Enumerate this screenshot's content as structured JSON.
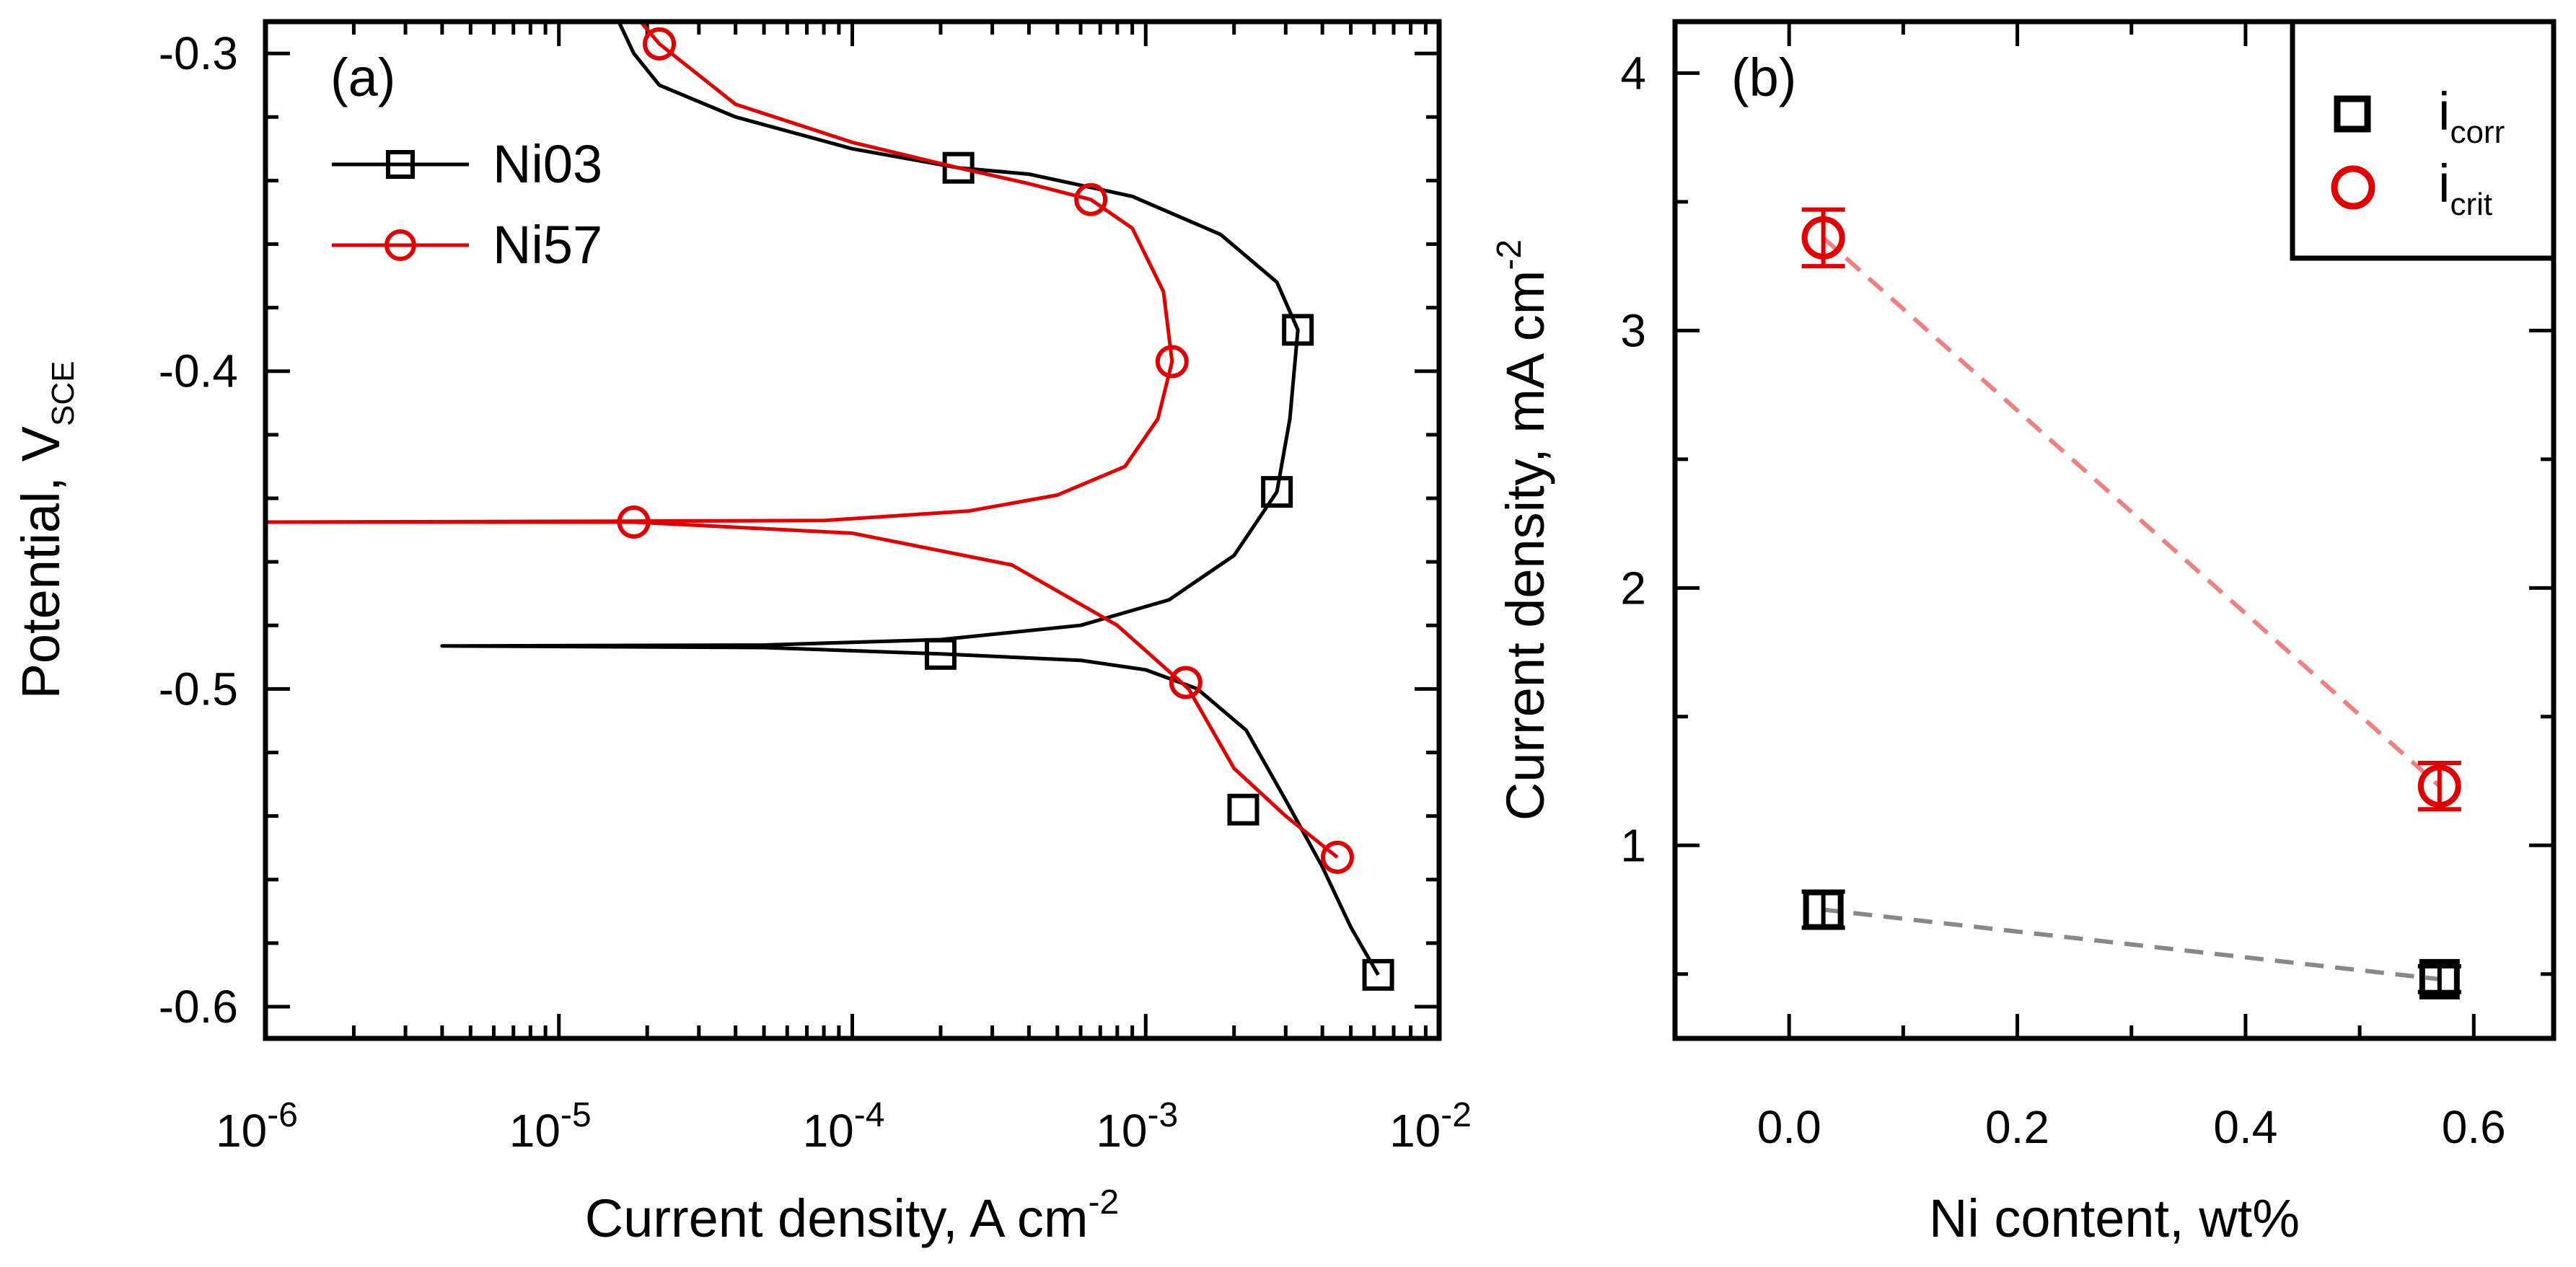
{
  "chart_data": [
    {
      "type": "line",
      "panel_label": "(a)",
      "xlabel": "Current density, A cm",
      "xlabel_sup": "-2",
      "ylabel": "Potential, V",
      "ylabel_sub": "SCE",
      "xscale": "log",
      "xlim": [
        1e-06,
        0.01
      ],
      "ylim": [
        -0.61,
        -0.29
      ],
      "x_ticks": [
        {
          "base": "10",
          "exp": "-6",
          "value": 1e-06
        },
        {
          "base": "10",
          "exp": "-5",
          "value": 1e-05
        },
        {
          "base": "10",
          "exp": "-4",
          "value": 0.0001
        },
        {
          "base": "10",
          "exp": "-3",
          "value": 0.001
        },
        {
          "base": "10",
          "exp": "-2",
          "value": 0.01
        }
      ],
      "y_ticks": [
        "-0.3",
        "-0.4",
        "-0.5",
        "-0.6"
      ],
      "legend_position": "top-left",
      "series": [
        {
          "name": "Ni03",
          "color": "#000000",
          "marker": "square",
          "points": [
            [
              0.0062,
              -0.59
            ],
            [
              0.005,
              -0.575
            ],
            [
              0.004,
              -0.556
            ],
            [
              0.003,
              -0.535
            ],
            [
              0.0022,
              -0.513
            ],
            [
              0.0015,
              -0.5
            ],
            [
              0.001,
              -0.494
            ],
            [
              0.0006,
              -0.491
            ],
            [
              0.0002,
              -0.489
            ],
            [
              5e-05,
              -0.487
            ],
            [
              4e-06,
              -0.4865
            ],
            [
              5e-05,
              -0.4862
            ],
            [
              0.0002,
              -0.4845
            ],
            [
              0.0006,
              -0.48
            ],
            [
              0.0012,
              -0.472
            ],
            [
              0.002,
              -0.458
            ],
            [
              0.0028,
              -0.438
            ],
            [
              0.0031,
              -0.415
            ],
            [
              0.0033,
              -0.387
            ],
            [
              0.0028,
              -0.372
            ],
            [
              0.0018,
              -0.357
            ],
            [
              0.0009,
              -0.345
            ],
            [
              0.0004,
              -0.338
            ],
            [
              0.00023,
              -0.336
            ],
            [
              0.0001,
              -0.33
            ],
            [
              4e-05,
              -0.32
            ],
            [
              2.2e-05,
              -0.31
            ],
            [
              1.8e-05,
              -0.3
            ],
            [
              1.6e-05,
              -0.29
            ]
          ],
          "marker_points": [
            [
              0.0062,
              -0.59
            ],
            [
              0.00215,
              -0.538
            ],
            [
              0.0002,
              -0.489
            ],
            [
              0.0028,
              -0.438
            ],
            [
              0.0033,
              -0.387
            ],
            [
              0.00023,
              -0.336
            ]
          ]
        },
        {
          "name": "Ni57",
          "color": "#e00000",
          "marker": "circle",
          "points": [
            [
              0.0045,
              -0.553
            ],
            [
              0.003,
              -0.54
            ],
            [
              0.002,
              -0.525
            ],
            [
              0.0014,
              -0.5
            ],
            [
              0.0008,
              -0.48
            ],
            [
              0.00035,
              -0.461
            ],
            [
              0.0001,
              -0.451
            ],
            [
              1.8e-05,
              -0.4475
            ],
            [
              1e-06,
              -0.4475
            ],
            [
              1.8e-05,
              -0.4472
            ],
            [
              8e-05,
              -0.447
            ],
            [
              0.00025,
              -0.444
            ],
            [
              0.0005,
              -0.439
            ],
            [
              0.00085,
              -0.43
            ],
            [
              0.0011,
              -0.415
            ],
            [
              0.00123,
              -0.397
            ],
            [
              0.00115,
              -0.375
            ],
            [
              0.0009,
              -0.355
            ],
            [
              0.00065,
              -0.346
            ],
            [
              0.0004,
              -0.341
            ],
            [
              0.00023,
              -0.336
            ],
            [
              0.0001,
              -0.328
            ],
            [
              4e-05,
              -0.316
            ],
            [
              2.2e-05,
              -0.297
            ],
            [
              1.9e-05,
              -0.29
            ]
          ],
          "marker_points": [
            [
              0.0045,
              -0.553
            ],
            [
              0.00137,
              -0.498
            ],
            [
              1.8e-05,
              -0.4475
            ],
            [
              0.00123,
              -0.397
            ],
            [
              0.00065,
              -0.346
            ],
            [
              2.2e-05,
              -0.297
            ]
          ]
        }
      ]
    },
    {
      "type": "scatter",
      "panel_label": "(b)",
      "xlabel": "Ni content, wt%",
      "ylabel": "Current density, mA cm",
      "ylabel_sup": "-2",
      "xlim": [
        -0.1,
        0.67
      ],
      "ylim": [
        0.25,
        4.2
      ],
      "x_ticks": [
        "0.0",
        "0.2",
        "0.4",
        "0.6"
      ],
      "y_ticks": [
        "1",
        "2",
        "3",
        "4"
      ],
      "legend_position": "top-right",
      "series": [
        {
          "name": "i",
          "name_sub": "corr",
          "color": "#000000",
          "line_color": "#888888",
          "marker": "square",
          "x": [
            0.03,
            0.57
          ],
          "y": [
            0.75,
            0.48
          ],
          "error": [
            0.07,
            0.05
          ]
        },
        {
          "name": "i",
          "name_sub": "crit",
          "color": "#e00000",
          "line_color": "#f08080",
          "marker": "circle",
          "x": [
            0.03,
            0.57
          ],
          "y": [
            3.36,
            1.23
          ],
          "error": [
            0.11,
            0.09
          ]
        }
      ]
    }
  ]
}
